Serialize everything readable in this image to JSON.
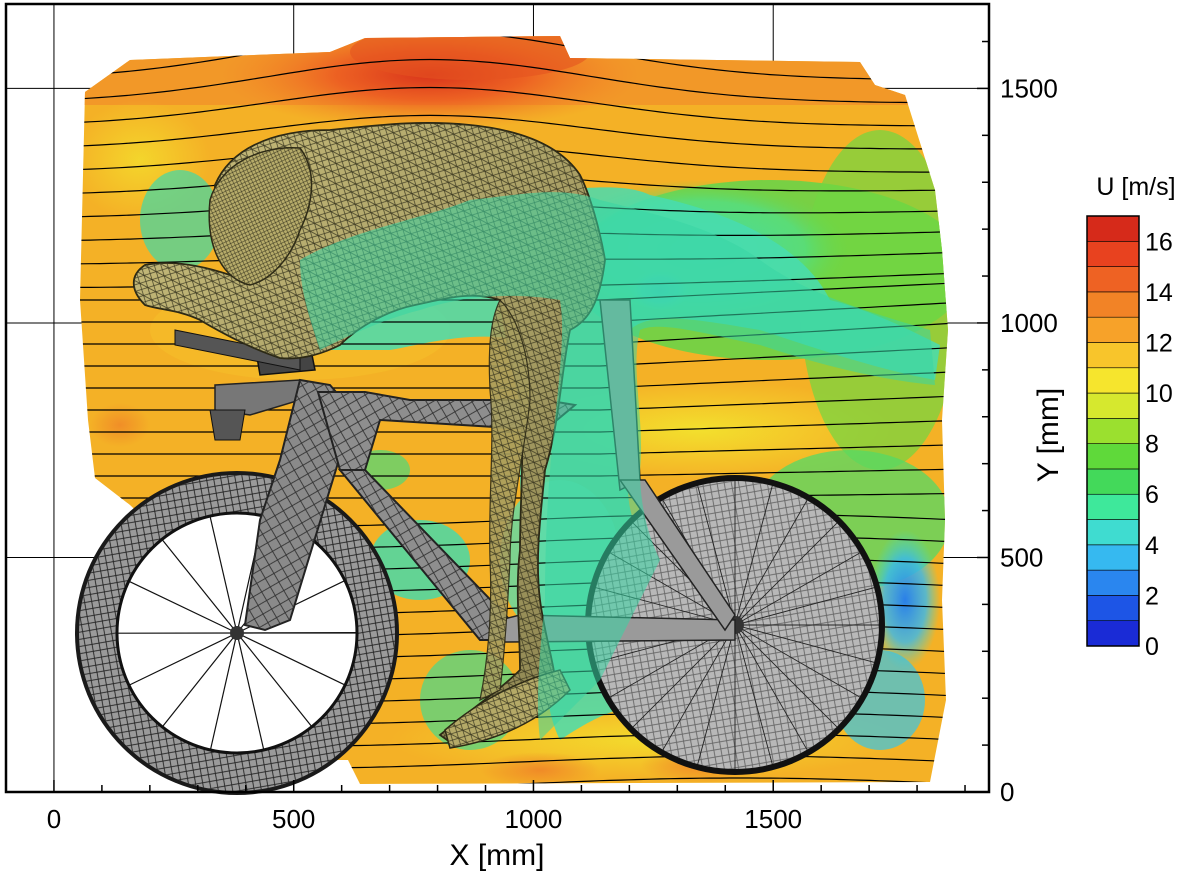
{
  "chart_data": {
    "type": "heatmap",
    "title": "",
    "xlabel": "X [mm]",
    "ylabel": "Y [mm]",
    "xlim": [
      -100,
      1950
    ],
    "ylim": [
      0,
      1680
    ],
    "x_ticks": [
      0,
      500,
      1000,
      1500
    ],
    "y_ticks": [
      0,
      500,
      1000,
      1500
    ],
    "grid": true,
    "colorbar": {
      "title": "U [m/s]",
      "min": 0,
      "max": 17,
      "tick_values": [
        0,
        2,
        4,
        6,
        8,
        10,
        12,
        14,
        16
      ],
      "tick_labels": [
        "0",
        "2",
        "4",
        "6",
        "8",
        "10",
        "12",
        "14",
        "16"
      ],
      "colors": [
        "#1a2bd6",
        "#1d55e6",
        "#2a86ef",
        "#36b9f0",
        "#3fdcd0",
        "#3ee89b",
        "#43d95a",
        "#5fd93a",
        "#9be02f",
        "#d6e82e",
        "#f6e52d",
        "#f8c52b",
        "#f7a229",
        "#f28326",
        "#ee6223",
        "#e8421f",
        "#d62a1a"
      ]
    },
    "freestream_velocity": 13,
    "wake_velocity": 6,
    "max_velocity": 16,
    "flow_regions": [
      {
        "x": 800,
        "y": 1550,
        "u": 16
      },
      {
        "x": 1150,
        "y": 1450,
        "u": 14
      },
      {
        "x": 250,
        "y": 1300,
        "u": 12
      },
      {
        "x": 200,
        "y": 900,
        "u": 12
      },
      {
        "x": 1400,
        "y": 850,
        "u": 11
      },
      {
        "x": 1700,
        "y": 1100,
        "u": 9
      },
      {
        "x": 1250,
        "y": 1200,
        "u": 6
      },
      {
        "x": 1600,
        "y": 350,
        "u": 5
      },
      {
        "x": 1800,
        "y": 400,
        "u": 3
      },
      {
        "x": 350,
        "y": 500,
        "u": 10
      },
      {
        "x": 900,
        "y": 80,
        "u": 13
      }
    ]
  }
}
